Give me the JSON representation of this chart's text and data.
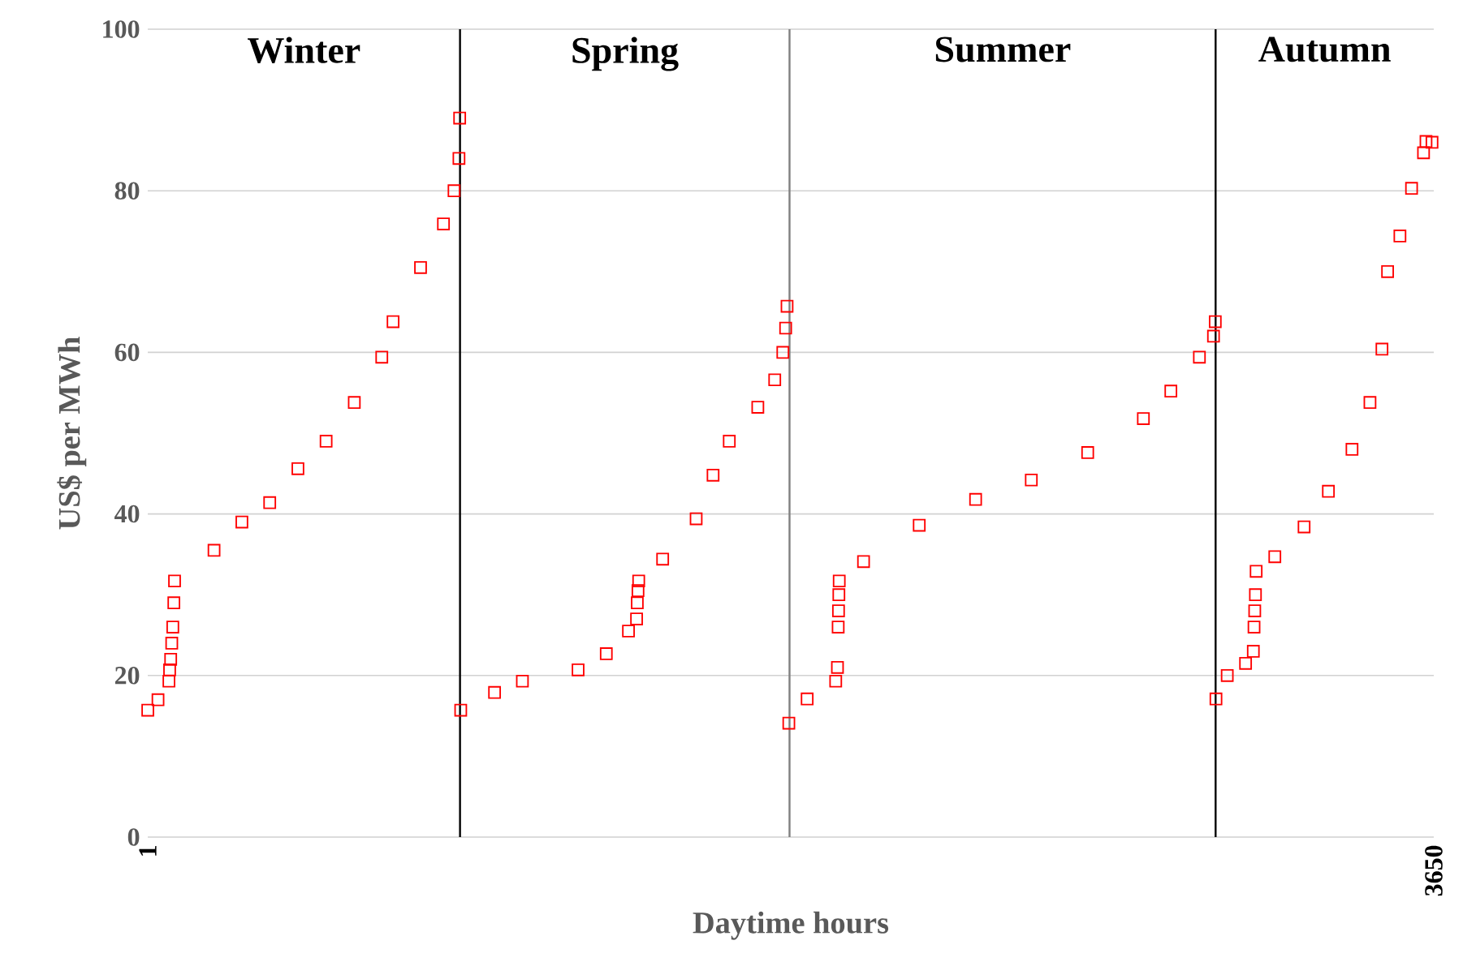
{
  "chart_data": {
    "type": "scatter",
    "x": [
      1,
      30,
      61,
      63,
      66,
      69,
      72,
      75,
      77,
      189,
      268,
      347,
      427,
      507,
      587,
      665,
      697,
      775,
      840,
      870,
      884,
      886,
      889,
      985,
      1064,
      1222,
      1302,
      1365,
      1388,
      1390,
      1392,
      1394,
      1462,
      1557,
      1605,
      1651,
      1732,
      1780,
      1803,
      1811,
      1815,
      1820,
      1872,
      1953,
      1958,
      1960,
      1961,
      1962,
      1963,
      2032,
      2190,
      2350,
      2508,
      2668,
      2826,
      2904,
      2985,
      3025,
      3030,
      3032,
      3064,
      3116,
      3138,
      3140,
      3142,
      3144,
      3146,
      3199,
      3282,
      3351,
      3418,
      3469,
      3503,
      3519,
      3554,
      3587,
      3621,
      3628,
      3645
    ],
    "values": [
      15.7,
      17,
      19.3,
      20.7,
      22,
      24,
      26,
      29,
      31.7,
      35.5,
      39,
      41.4,
      45.6,
      49,
      53.8,
      59.4,
      63.8,
      70.5,
      75.9,
      80,
      84,
      89,
      15.7,
      17.9,
      19.3,
      20.7,
      22.7,
      25.5,
      27,
      29,
      30.5,
      31.7,
      34.4,
      39.4,
      44.8,
      49,
      53.2,
      56.6,
      60,
      63,
      65.7,
      14.1,
      17.1,
      19.3,
      21,
      26,
      28,
      30,
      31.7,
      34.1,
      38.6,
      41.8,
      44.2,
      47.6,
      51.8,
      55.2,
      59.4,
      62,
      63.8,
      17.1,
      20,
      21.5,
      23,
      26,
      28,
      30,
      32.9,
      34.7,
      38.4,
      42.8,
      48,
      53.8,
      60.4,
      70,
      74.4,
      80.3,
      84.7,
      86.1,
      86
    ],
    "color": "#ff0000",
    "marker": "square",
    "xlim": [
      1,
      3650
    ],
    "xticks": [
      1,
      3650
    ],
    "ylim": [
      0,
      100
    ],
    "yticks": [
      0,
      20,
      40,
      60,
      80,
      100
    ],
    "grid": "y",
    "xlabel": "Daytime hours",
    "ylabel": "US$ per MWh",
    "ref_lines": [
      {
        "axis": "x",
        "value": 887,
        "color": "#000000"
      },
      {
        "axis": "x",
        "value": 1822,
        "color": "#808080"
      },
      {
        "axis": "x",
        "value": 3031,
        "color": "#000000"
      }
    ],
    "annotations": [
      "Winter",
      "Spring",
      "Summer",
      "Autumn"
    ]
  }
}
